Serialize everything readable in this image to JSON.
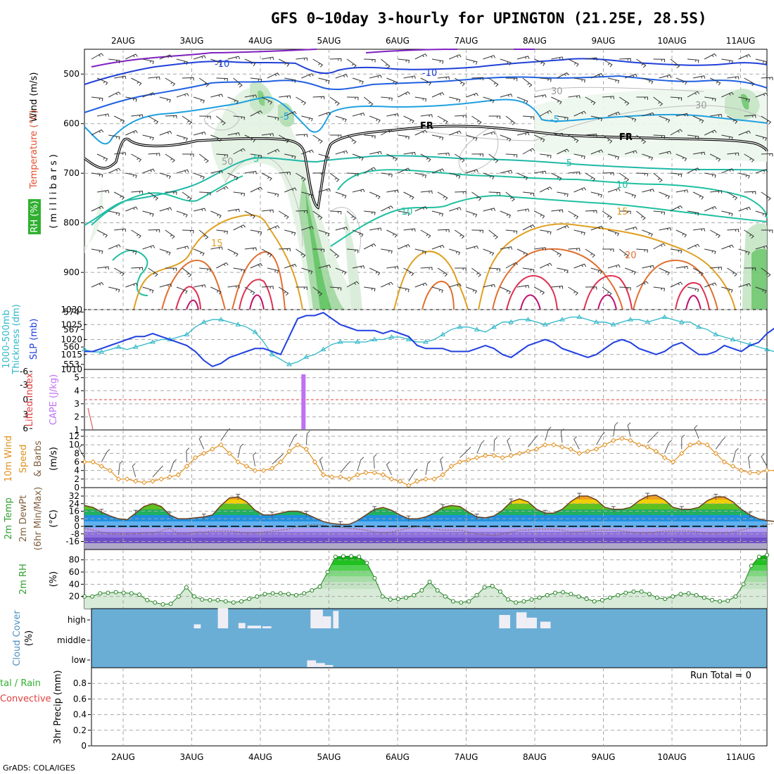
{
  "title": "GFS 0~10day 3-hourly for UPINGTON (21.25E, 28.5S)",
  "credit": "GrADS: COLA/IGES",
  "dates": [
    "2AUG",
    "3AUG",
    "4AUG",
    "5AUG",
    "6AUG",
    "7AUG",
    "8AUG",
    "9AUG",
    "10AUG",
    "11AUG"
  ],
  "colors": {
    "grid": "#a8a8a8",
    "slp": "#2040e0",
    "thickness": "#30b8c8",
    "cape": "#c070f0",
    "lifted": "#e04040",
    "wind": "#e09020",
    "dew": "#806040",
    "rh": "#30a030",
    "cloud": "#6aaed6",
    "isotherm_cold": "#2040d8",
    "isotherm_cool": "#20a0e0",
    "isotherm_mild": "#20c0a0",
    "isotherm_warm": "#e0a020",
    "isotherm_hot": "#e03070"
  },
  "panel_labels": {
    "upper": {
      "wind": "Wind (m/s)",
      "temp": "Temperature (°C)",
      "rh": "RH (%)",
      "axis": "(millibars)",
      "ticks": [
        "500",
        "600",
        "700",
        "800",
        "900"
      ],
      "iso_labels": [
        "-10",
        "-10",
        "-5",
        "-5",
        "5",
        "-5",
        "10",
        "10",
        "15",
        "15",
        "20"
      ],
      "fr": [
        "FR",
        "FR"
      ],
      "rh_labels": [
        "30",
        "30",
        "50"
      ]
    },
    "slp": {
      "thickness": "1000-500mb",
      "thickness2": "Thickness (dm)",
      "slp": "SLP (mb)",
      "left_ticks": [
        "574",
        "567",
        "560",
        "553"
      ],
      "right_ticks": [
        "1030",
        "1025",
        "1020",
        "1015",
        "1010"
      ]
    },
    "cape": {
      "lifted": "Lifted Index",
      "cape": "CAPE (J/kg)",
      "left_ticks": [
        "-6",
        "-3",
        "0",
        "3",
        "6"
      ],
      "right_ticks": [
        "5",
        "4",
        "3",
        "2",
        "1"
      ]
    },
    "wind10": {
      "line1": "10m Wind",
      "line2": "Speed",
      "line3": "& Barbs",
      "units": "(m/s)",
      "ticks": [
        "12",
        "10",
        "8",
        "6",
        "4",
        "2",
        "0"
      ]
    },
    "temp2m": {
      "line1": "2m Temp",
      "line2": "2m DewPt",
      "line3": "(6hr Min/Max)",
      "units": "(°C)",
      "ticks": [
        "32",
        "24",
        "16",
        "8",
        "0",
        "-8",
        "-16"
      ]
    },
    "rh2m": {
      "label": "2m RH",
      "units": "(%)",
      "ticks": [
        "80",
        "60",
        "40",
        "20"
      ]
    },
    "cloud": {
      "label": "Cloud Cover",
      "units": "(%)",
      "ticks": [
        "high",
        "middle",
        "low"
      ]
    },
    "precip": {
      "label": "3hr Precip (mm)",
      "left1": "tal / Rain",
      "left2": "Convective",
      "run_total": "Run Total = 0",
      "ticks": [
        "0.8",
        "0.6",
        "0.4",
        "0.2",
        "0"
      ]
    }
  },
  "chart_data": [
    {
      "type": "line",
      "panel": "slp-thickness",
      "x_range_days": [
        0,
        10
      ],
      "series": [
        {
          "name": "SLP (mb)",
          "y_range": [
            1010,
            1030
          ],
          "values": [
            1016,
            1016,
            1017,
            1018,
            1019,
            1020,
            1021,
            1021,
            1022,
            1021,
            1020,
            1019,
            1018,
            1016,
            1013,
            1011,
            1012,
            1014,
            1015,
            1016,
            1017,
            1017,
            1016,
            1015,
            1021,
            1027,
            1028,
            1028,
            1029,
            1027,
            1025,
            1024,
            1023,
            1023,
            1023,
            1022,
            1023,
            1022,
            1021,
            1018,
            1017,
            1017,
            1017,
            1016,
            1016,
            1016,
            1017,
            1018,
            1017,
            1015,
            1014,
            1016,
            1018,
            1019,
            1020,
            1019,
            1017,
            1016,
            1015,
            1014,
            1015,
            1017,
            1019,
            1020,
            1019,
            1017,
            1016,
            1015,
            1016,
            1018,
            1019,
            1017,
            1015,
            1015,
            1016,
            1018,
            1017,
            1016,
            1018,
            1019,
            1022,
            1024
          ]
        },
        {
          "name": "1000-500mb Thickness (dm)",
          "y_range": [
            551,
            575
          ],
          "values": [
            559,
            558,
            558,
            559,
            560,
            559,
            560,
            561,
            562,
            563,
            563,
            564,
            565,
            568,
            570,
            571,
            571,
            570,
            569,
            568,
            566,
            562,
            557,
            555,
            553,
            554,
            556,
            557,
            559,
            561,
            562,
            562,
            562,
            562,
            563,
            563,
            564,
            564,
            563,
            562,
            562,
            563,
            565,
            567,
            568,
            568,
            567,
            566,
            568,
            570,
            570,
            571,
            571,
            570,
            569,
            570,
            571,
            572,
            572,
            571,
            570,
            570,
            569,
            570,
            571,
            571,
            570,
            571,
            572,
            571,
            570,
            570,
            568,
            567,
            565,
            564,
            563,
            562,
            561,
            560,
            559,
            558
          ]
        }
      ]
    },
    {
      "type": "bar",
      "panel": "cape-lifted-index",
      "series": [
        {
          "name": "CAPE (J/kg)",
          "x_day": 2.63,
          "value": 5
        },
        {
          "name": "Lifted Index",
          "x_day": [
            0.0,
            0.05
          ],
          "values": [
            2,
            6
          ]
        }
      ],
      "y_range_lifted": [
        6,
        -6
      ],
      "y_range_cape": [
        1,
        5
      ]
    },
    {
      "type": "line",
      "panel": "10m-wind",
      "y_range": [
        0,
        12
      ],
      "series": [
        {
          "name": "10m Wind Speed (m/s)",
          "values": [
            6,
            6,
            5,
            4,
            2,
            2,
            1.5,
            1.2,
            1.5,
            2,
            2.5,
            3,
            5,
            7,
            8,
            9,
            10,
            8,
            6,
            5,
            4,
            4,
            4.5,
            6,
            8.5,
            10,
            9,
            6,
            3,
            2.5,
            2.5,
            2,
            3,
            3.5,
            3.5,
            3,
            2,
            1.5,
            0.5,
            1.5,
            2,
            2,
            3,
            5,
            6,
            6.5,
            7,
            7.5,
            7.5,
            7,
            7.5,
            8,
            8.5,
            9,
            10,
            10,
            9.5,
            9,
            8,
            8.5,
            9,
            10,
            11,
            11.5,
            11,
            10,
            9.5,
            8.5,
            7,
            6,
            8,
            10,
            10.5,
            10,
            8,
            6,
            5,
            4,
            3.5,
            3.5,
            4,
            4
          ]
        }
      ]
    },
    {
      "type": "area",
      "panel": "2m-temp-dewpoint",
      "y_range": [
        -20,
        36
      ],
      "series": [
        {
          "name": "2m Temp (°C)",
          "values": [
            22,
            20,
            15,
            11,
            8,
            7,
            14,
            21,
            24,
            21,
            12,
            8,
            8,
            9,
            10,
            12,
            22,
            30,
            31,
            26,
            17,
            12,
            12,
            14,
            16,
            16,
            13,
            9,
            5,
            3,
            2,
            2,
            6,
            12,
            18,
            20,
            17,
            12,
            8,
            8,
            10,
            14,
            20,
            22,
            21,
            15,
            10,
            9,
            11,
            17,
            26,
            29,
            26,
            18,
            14,
            14,
            18,
            26,
            32,
            32,
            28,
            20,
            18,
            18,
            20,
            27,
            32,
            33,
            28,
            20,
            18,
            18,
            20,
            27,
            31,
            31,
            26,
            18,
            12,
            8,
            6,
            5
          ]
        },
        {
          "name": "2m DewPt (°C)",
          "values": [
            -2,
            -4,
            -6,
            -8,
            -8,
            -8,
            -8,
            -7,
            -7,
            -5,
            -2,
            -8,
            -8,
            -6,
            -6,
            -5,
            -5,
            -5,
            -6,
            -7,
            -7,
            -6,
            -5,
            -4,
            -3,
            0,
            1,
            2,
            1,
            0,
            -1,
            -2,
            -3,
            -4,
            -6,
            -7,
            -6,
            -4,
            -2,
            0,
            -1,
            -3,
            -4,
            -4,
            -4,
            -6,
            -8,
            -9,
            -10,
            -8,
            -6,
            -4,
            -4,
            -3,
            -3,
            -3,
            -4,
            -6,
            -6,
            -5,
            -4,
            -4,
            -4,
            -5,
            -6,
            -7,
            -7,
            -6,
            -5,
            -5,
            -5,
            -5,
            -6,
            -7,
            -7,
            -7,
            -6,
            -4,
            -2,
            0,
            2,
            3
          ]
        }
      ]
    },
    {
      "type": "area",
      "panel": "2m-rh",
      "y_range": [
        0,
        90
      ],
      "series": [
        {
          "name": "2m RH (%)",
          "values": [
            20,
            20,
            25,
            26,
            27,
            26,
            25,
            23,
            14,
            10,
            7,
            8,
            20,
            35,
            20,
            15,
            14,
            14,
            12,
            10,
            12,
            16,
            20,
            24,
            25,
            25,
            24,
            22,
            25,
            30,
            36,
            60,
            85,
            86,
            86,
            85,
            75,
            50,
            20,
            15,
            16,
            18,
            22,
            30,
            44,
            30,
            20,
            12,
            10,
            12,
            22,
            35,
            37,
            28,
            15,
            10,
            12,
            15,
            18,
            22,
            26,
            27,
            24,
            20,
            16,
            12,
            14,
            18,
            22,
            26,
            28,
            28,
            24,
            18,
            16,
            20,
            24,
            25,
            22,
            18,
            14,
            12,
            13,
            20,
            40,
            70,
            85,
            88
          ]
        }
      ]
    },
    {
      "type": "bar",
      "panel": "cloud-cover",
      "levels": [
        "high",
        "middle",
        "low"
      ],
      "series": [
        {
          "name": "high",
          "segments": [
            [
              1.35,
              1.45,
              6
            ],
            [
              1.7,
              1.85,
              30
            ],
            [
              2.0,
              2.1,
              8
            ],
            [
              2.13,
              2.33,
              4
            ],
            [
              2.35,
              2.48,
              3
            ],
            [
              3.05,
              3.23,
              28
            ],
            [
              3.23,
              3.35,
              18
            ],
            [
              3.38,
              3.46,
              26
            ],
            [
              5.8,
              5.96,
              20
            ],
            [
              6.05,
              6.2,
              24
            ],
            [
              6.2,
              6.35,
              16
            ],
            [
              6.4,
              6.55,
              10
            ]
          ]
        },
        {
          "name": "middle",
          "segments": [
            [
              9.88,
              9.95,
              3
            ]
          ]
        },
        {
          "name": "low",
          "segments": [
            [
              3.0,
              3.13,
              10
            ],
            [
              3.13,
              3.26,
              6
            ],
            [
              3.26,
              3.38,
              3
            ]
          ]
        }
      ]
    },
    {
      "type": "bar",
      "panel": "3hr-precip",
      "y_range": [
        0,
        1
      ],
      "series": [
        {
          "name": "3hr Precip (mm)",
          "values": []
        }
      ]
    }
  ]
}
